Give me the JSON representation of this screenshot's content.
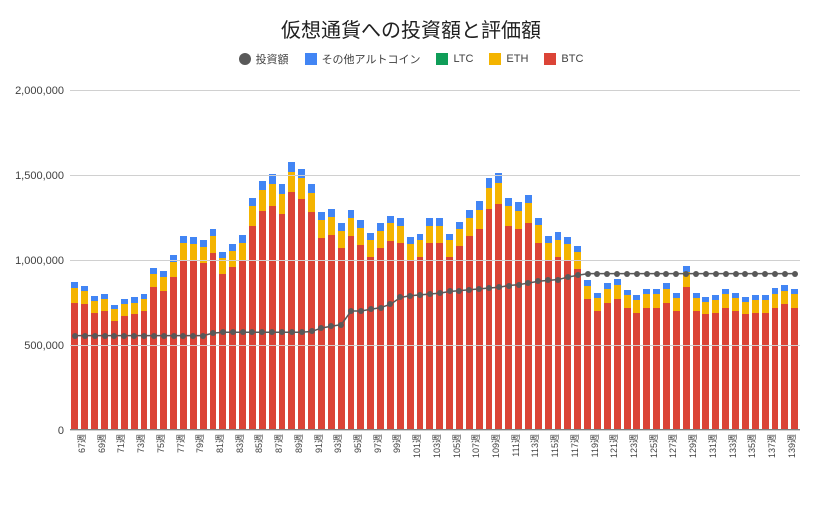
{
  "title": "仮想通貨への投資額と評価額",
  "legend": [
    {
      "label": "投資額",
      "color": "#595959",
      "shape": "circle"
    },
    {
      "label": "その他アルトコイン",
      "color": "#4285f4",
      "shape": "square"
    },
    {
      "label": "LTC",
      "color": "#0f9d58",
      "shape": "square"
    },
    {
      "label": "ETH",
      "color": "#f4b400",
      "shape": "square"
    },
    {
      "label": "BTC",
      "color": "#db4437",
      "shape": "square"
    }
  ],
  "yAxis": {
    "min": 0,
    "max": 2000000,
    "ticks": [
      0,
      500000,
      1000000,
      1500000,
      2000000
    ],
    "tickLabels": [
      "0",
      "500,000",
      "1,000,000",
      "1,500,000",
      "2,000,000"
    ]
  },
  "colors": {
    "btc": "#db4437",
    "eth": "#f4b400",
    "ltc": "#0f9d58",
    "alt": "#4285f4",
    "invest": "#595959",
    "grid": "#d0d0d0",
    "bg": "#ffffff"
  },
  "xlabels": [
    "67週",
    "",
    "69週",
    "",
    "71週",
    "",
    "73週",
    "",
    "75週",
    "",
    "77週",
    "",
    "79週",
    "",
    "81週",
    "",
    "83週",
    "",
    "85週",
    "",
    "87週",
    "",
    "89週",
    "",
    "91週",
    "",
    "93週",
    "",
    "95週",
    "",
    "97週",
    "",
    "99週",
    "",
    "101週",
    "",
    "103週",
    "",
    "105週",
    "",
    "107週",
    "",
    "109週",
    "",
    "111週",
    "",
    "113週",
    "",
    "115週",
    "",
    "117週",
    "",
    "119週",
    "",
    "121週",
    "",
    "123週",
    "",
    "125週",
    "",
    "127週",
    "",
    "129週",
    "",
    "131週",
    "",
    "133週",
    "",
    "135週",
    "",
    "137週",
    "",
    "139週",
    ""
  ],
  "series": [
    {
      "btc": 750000,
      "eth": 85000,
      "ltc": 0,
      "alt": 35000,
      "invest": 555000
    },
    {
      "btc": 740000,
      "eth": 80000,
      "ltc": 0,
      "alt": 30000,
      "invest": 555000
    },
    {
      "btc": 690000,
      "eth": 70000,
      "ltc": 0,
      "alt": 30000,
      "invest": 555000
    },
    {
      "btc": 700000,
      "eth": 70000,
      "ltc": 0,
      "alt": 30000,
      "invest": 555000
    },
    {
      "btc": 640000,
      "eth": 70000,
      "ltc": 0,
      "alt": 25000,
      "invest": 555000
    },
    {
      "btc": 670000,
      "eth": 70000,
      "ltc": 0,
      "alt": 30000,
      "invest": 555000
    },
    {
      "btc": 680000,
      "eth": 70000,
      "ltc": 0,
      "alt": 30000,
      "invest": 555000
    },
    {
      "btc": 700000,
      "eth": 70000,
      "ltc": 0,
      "alt": 30000,
      "invest": 555000
    },
    {
      "btc": 840000,
      "eth": 80000,
      "ltc": 0,
      "alt": 35000,
      "invest": 555000
    },
    {
      "btc": 820000,
      "eth": 80000,
      "ltc": 0,
      "alt": 35000,
      "invest": 555000
    },
    {
      "btc": 900000,
      "eth": 90000,
      "ltc": 0,
      "alt": 40000,
      "invest": 555000
    },
    {
      "btc": 1000000,
      "eth": 100000,
      "ltc": 0,
      "alt": 40000,
      "invest": 555000
    },
    {
      "btc": 1000000,
      "eth": 95000,
      "ltc": 0,
      "alt": 40000,
      "invest": 555000
    },
    {
      "btc": 980000,
      "eth": 95000,
      "ltc": 0,
      "alt": 40000,
      "invest": 555000
    },
    {
      "btc": 1040000,
      "eth": 100000,
      "ltc": 0,
      "alt": 45000,
      "invest": 570000
    },
    {
      "btc": 920000,
      "eth": 90000,
      "ltc": 0,
      "alt": 40000,
      "invest": 575000
    },
    {
      "btc": 960000,
      "eth": 95000,
      "ltc": 0,
      "alt": 40000,
      "invest": 575000
    },
    {
      "btc": 1000000,
      "eth": 100000,
      "ltc": 0,
      "alt": 45000,
      "invest": 575000
    },
    {
      "btc": 1200000,
      "eth": 115000,
      "ltc": 0,
      "alt": 50000,
      "invest": 575000
    },
    {
      "btc": 1290000,
      "eth": 120000,
      "ltc": 0,
      "alt": 55000,
      "invest": 575000
    },
    {
      "btc": 1320000,
      "eth": 130000,
      "ltc": 0,
      "alt": 55000,
      "invest": 575000
    },
    {
      "btc": 1270000,
      "eth": 120000,
      "ltc": 0,
      "alt": 55000,
      "invest": 575000
    },
    {
      "btc": 1400000,
      "eth": 120000,
      "ltc": 0,
      "alt": 55000,
      "invest": 575000
    },
    {
      "btc": 1360000,
      "eth": 120000,
      "ltc": 0,
      "alt": 55000,
      "invest": 575000
    },
    {
      "btc": 1280000,
      "eth": 115000,
      "ltc": 0,
      "alt": 50000,
      "invest": 580000
    },
    {
      "btc": 1130000,
      "eth": 105000,
      "ltc": 0,
      "alt": 45000,
      "invest": 600000
    },
    {
      "btc": 1150000,
      "eth": 105000,
      "ltc": 0,
      "alt": 45000,
      "invest": 610000
    },
    {
      "btc": 1070000,
      "eth": 100000,
      "ltc": 0,
      "alt": 45000,
      "invest": 620000
    },
    {
      "btc": 1140000,
      "eth": 110000,
      "ltc": 0,
      "alt": 45000,
      "invest": 700000
    },
    {
      "btc": 1090000,
      "eth": 100000,
      "ltc": 0,
      "alt": 45000,
      "invest": 700000
    },
    {
      "btc": 1020000,
      "eth": 100000,
      "ltc": 0,
      "alt": 40000,
      "invest": 710000
    },
    {
      "btc": 1070000,
      "eth": 100000,
      "ltc": 0,
      "alt": 45000,
      "invest": 720000
    },
    {
      "btc": 1110000,
      "eth": 105000,
      "ltc": 0,
      "alt": 45000,
      "invest": 740000
    },
    {
      "btc": 1100000,
      "eth": 100000,
      "ltc": 0,
      "alt": 45000,
      "invest": 780000
    },
    {
      "btc": 1000000,
      "eth": 95000,
      "ltc": 0,
      "alt": 40000,
      "invest": 790000
    },
    {
      "btc": 1020000,
      "eth": 95000,
      "ltc": 0,
      "alt": 40000,
      "invest": 795000
    },
    {
      "btc": 1100000,
      "eth": 100000,
      "ltc": 0,
      "alt": 45000,
      "invest": 800000
    },
    {
      "btc": 1100000,
      "eth": 100000,
      "ltc": 0,
      "alt": 45000,
      "invest": 805000
    },
    {
      "btc": 1020000,
      "eth": 95000,
      "ltc": 0,
      "alt": 40000,
      "invest": 815000
    },
    {
      "btc": 1080000,
      "eth": 100000,
      "ltc": 0,
      "alt": 45000,
      "invest": 820000
    },
    {
      "btc": 1140000,
      "eth": 110000,
      "ltc": 0,
      "alt": 45000,
      "invest": 825000
    },
    {
      "btc": 1180000,
      "eth": 115000,
      "ltc": 0,
      "alt": 50000,
      "invest": 830000
    },
    {
      "btc": 1300000,
      "eth": 125000,
      "ltc": 0,
      "alt": 55000,
      "invest": 835000
    },
    {
      "btc": 1330000,
      "eth": 125000,
      "ltc": 0,
      "alt": 55000,
      "invest": 840000
    },
    {
      "btc": 1200000,
      "eth": 115000,
      "ltc": 0,
      "alt": 50000,
      "invest": 850000
    },
    {
      "btc": 1180000,
      "eth": 110000,
      "ltc": 0,
      "alt": 50000,
      "invest": 855000
    },
    {
      "btc": 1220000,
      "eth": 115000,
      "ltc": 0,
      "alt": 50000,
      "invest": 865000
    },
    {
      "btc": 1100000,
      "eth": 105000,
      "ltc": 0,
      "alt": 45000,
      "invest": 875000
    },
    {
      "btc": 1000000,
      "eth": 100000,
      "ltc": 0,
      "alt": 40000,
      "invest": 880000
    },
    {
      "btc": 1020000,
      "eth": 100000,
      "ltc": 0,
      "alt": 45000,
      "invest": 885000
    },
    {
      "btc": 1000000,
      "eth": 95000,
      "ltc": 0,
      "alt": 40000,
      "invest": 900000
    },
    {
      "btc": 950000,
      "eth": 95000,
      "ltc": 0,
      "alt": 40000,
      "invest": 910000
    },
    {
      "btc": 770000,
      "eth": 80000,
      "ltc": 0,
      "alt": 35000,
      "invest": 920000
    },
    {
      "btc": 700000,
      "eth": 75000,
      "ltc": 0,
      "alt": 30000,
      "invest": 920000
    },
    {
      "btc": 750000,
      "eth": 80000,
      "ltc": 0,
      "alt": 35000,
      "invest": 920000
    },
    {
      "btc": 770000,
      "eth": 85000,
      "ltc": 0,
      "alt": 35000,
      "invest": 920000
    },
    {
      "btc": 720000,
      "eth": 75000,
      "ltc": 0,
      "alt": 30000,
      "invest": 920000
    },
    {
      "btc": 690000,
      "eth": 75000,
      "ltc": 0,
      "alt": 30000,
      "invest": 920000
    },
    {
      "btc": 720000,
      "eth": 80000,
      "ltc": 0,
      "alt": 30000,
      "invest": 920000
    },
    {
      "btc": 720000,
      "eth": 80000,
      "ltc": 0,
      "alt": 30000,
      "invest": 920000
    },
    {
      "btc": 750000,
      "eth": 80000,
      "ltc": 0,
      "alt": 35000,
      "invest": 920000
    },
    {
      "btc": 700000,
      "eth": 75000,
      "ltc": 0,
      "alt": 30000,
      "invest": 920000
    },
    {
      "btc": 840000,
      "eth": 90000,
      "ltc": 0,
      "alt": 35000,
      "invest": 920000
    },
    {
      "btc": 700000,
      "eth": 75000,
      "ltc": 0,
      "alt": 30000,
      "invest": 920000
    },
    {
      "btc": 680000,
      "eth": 75000,
      "ltc": 0,
      "alt": 30000,
      "invest": 920000
    },
    {
      "btc": 690000,
      "eth": 75000,
      "ltc": 0,
      "alt": 30000,
      "invest": 920000
    },
    {
      "btc": 720000,
      "eth": 80000,
      "ltc": 0,
      "alt": 30000,
      "invest": 920000
    },
    {
      "btc": 700000,
      "eth": 75000,
      "ltc": 0,
      "alt": 30000,
      "invest": 920000
    },
    {
      "btc": 680000,
      "eth": 75000,
      "ltc": 0,
      "alt": 30000,
      "invest": 920000
    },
    {
      "btc": 690000,
      "eth": 75000,
      "ltc": 0,
      "alt": 30000,
      "invest": 920000
    },
    {
      "btc": 690000,
      "eth": 75000,
      "ltc": 0,
      "alt": 30000,
      "invest": 920000
    },
    {
      "btc": 720000,
      "eth": 80000,
      "ltc": 0,
      "alt": 35000,
      "invest": 920000
    },
    {
      "btc": 740000,
      "eth": 80000,
      "ltc": 0,
      "alt": 35000,
      "invest": 920000
    },
    {
      "btc": 720000,
      "eth": 80000,
      "ltc": 0,
      "alt": 30000,
      "invest": 920000
    }
  ]
}
